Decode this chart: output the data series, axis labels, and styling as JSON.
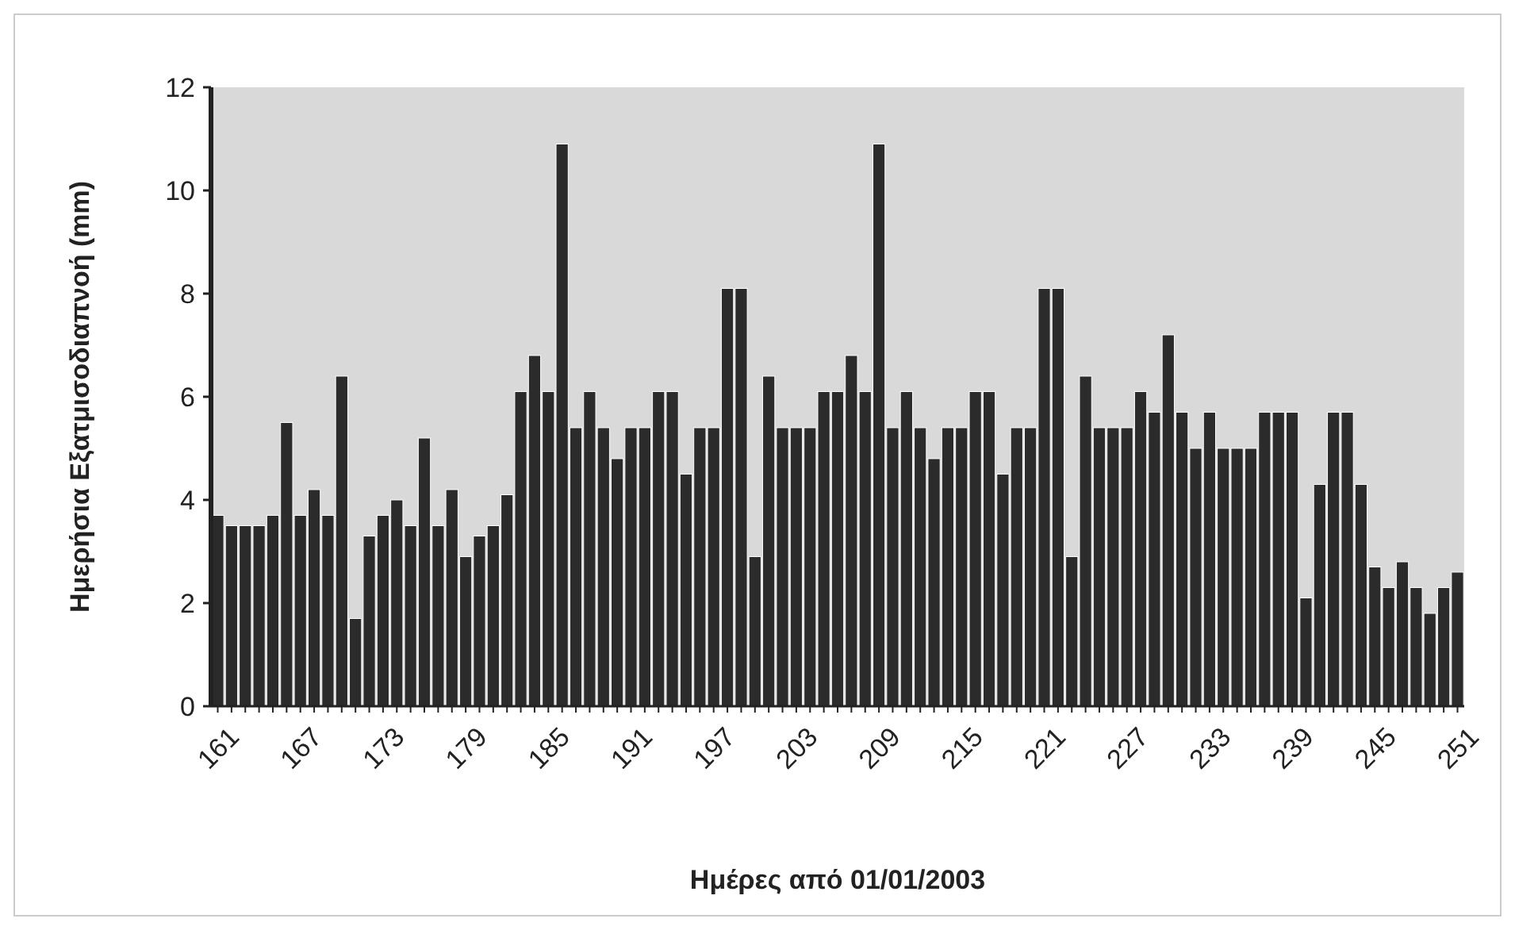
{
  "chart_data": {
    "type": "bar",
    "xlabel": "Ημέρες από 01/01/2003",
    "ylabel": "Ημερήσια Εξατμισοδιαπνοή (mm)",
    "categories": [
      "161",
      null,
      null,
      null,
      null,
      null,
      "167",
      null,
      null,
      null,
      null,
      null,
      "173",
      null,
      null,
      null,
      null,
      null,
      "179",
      null,
      null,
      null,
      null,
      null,
      "185",
      null,
      null,
      null,
      null,
      null,
      "191",
      null,
      null,
      null,
      null,
      null,
      "197",
      null,
      null,
      null,
      null,
      null,
      "203",
      null,
      null,
      null,
      null,
      null,
      "209",
      null,
      null,
      null,
      null,
      null,
      "215",
      null,
      null,
      null,
      null,
      null,
      "221",
      null,
      null,
      null,
      null,
      null,
      "227",
      null,
      null,
      null,
      null,
      null,
      "233",
      null,
      null,
      null,
      null,
      null,
      "239",
      null,
      null,
      null,
      null,
      null,
      "245",
      null,
      null,
      null,
      null,
      null,
      "251"
    ],
    "values": [
      3.7,
      3.5,
      3.5,
      3.5,
      3.7,
      5.5,
      3.7,
      4.2,
      3.7,
      6.4,
      1.7,
      3.3,
      3.7,
      4.0,
      3.5,
      5.2,
      3.5,
      4.2,
      2.9,
      3.3,
      3.5,
      4.1,
      6.1,
      6.8,
      6.1,
      10.9,
      5.4,
      6.1,
      5.4,
      4.8,
      5.4,
      5.4,
      6.1,
      6.1,
      4.5,
      5.4,
      5.4,
      8.1,
      8.1,
      2.9,
      6.4,
      5.4,
      5.4,
      5.4,
      6.1,
      6.1,
      6.8,
      6.1,
      10.9,
      5.4,
      6.1,
      5.4,
      4.8,
      5.4,
      5.4,
      6.1,
      6.1,
      4.5,
      5.4,
      5.4,
      8.1,
      8.1,
      2.9,
      6.4,
      5.4,
      5.4,
      5.4,
      6.1,
      5.7,
      7.2,
      5.7,
      5.0,
      5.7,
      5.0,
      5.0,
      5.0,
      5.7,
      5.7,
      5.7,
      2.1,
      4.3,
      5.7,
      5.7,
      4.3,
      2.7,
      2.3,
      2.8,
      2.3,
      1.8,
      2.3,
      2.6
    ],
    "color": "#2b2b2b",
    "ylim": [
      0,
      12
    ],
    "yticks": [
      0,
      2,
      4,
      6,
      8,
      10,
      12
    ]
  }
}
